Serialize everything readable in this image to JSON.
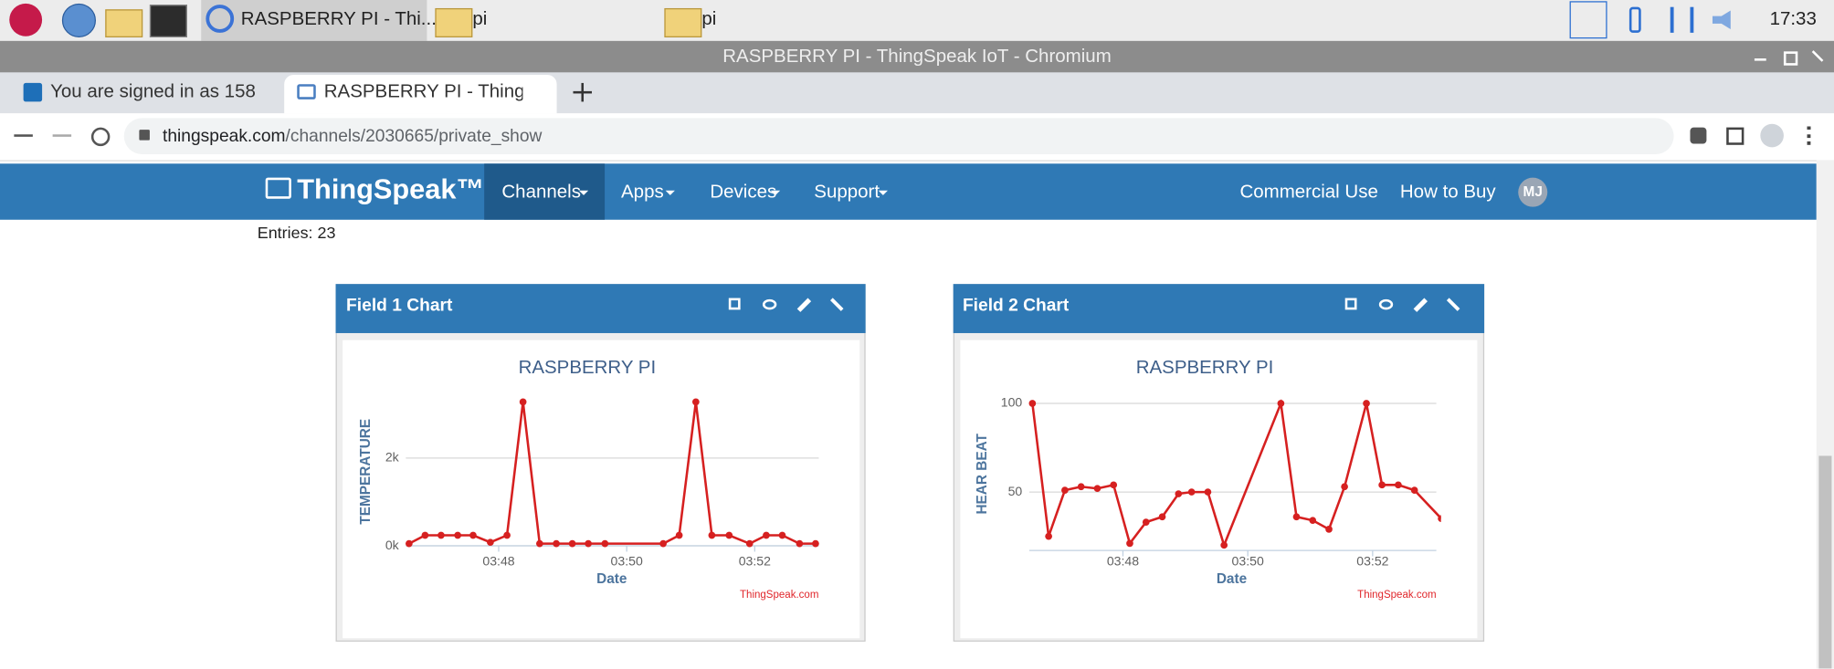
{
  "taskbar": {
    "window_button": "RASPBERRY PI - Thi...",
    "folder_1": "pi",
    "folder_2": "pi",
    "clock": "17:33"
  },
  "browser": {
    "window_title": "RASPBERRY PI - ThingSpeak IoT - Chromium",
    "tabs": [
      "You are signed in as 158",
      "RASPBERRY PI - ThingS"
    ],
    "url_host": "thingspeak.com",
    "url_path": "/channels/2030665/private_show"
  },
  "nav": {
    "logo": "ThingSpeak™",
    "menu": [
      "Channels",
      "Apps",
      "Devices",
      "Support"
    ],
    "right": [
      "Commercial Use",
      "How to Buy"
    ],
    "avatar": "MJ"
  },
  "entries": "Entries: 23",
  "charts": [
    {
      "header": "Field 1 Chart",
      "chart_data": {
        "type": "line",
        "title": "RASPBERRY PI",
        "x_label": "Date",
        "y_label": "TEMPERATURE",
        "credit": "ThingSpeak.com",
        "x": [
          46.6,
          46.85,
          47.1,
          47.36,
          47.6,
          47.87,
          48.13,
          48.38,
          48.64,
          48.9,
          49.15,
          49.4,
          49.66,
          50.57,
          50.82,
          51.08,
          51.33,
          51.6,
          51.92,
          52.18,
          52.43,
          52.7,
          52.95
        ],
        "series": [
          {
            "color": "#d62020",
            "values": [
              50,
              240,
              240,
              240,
              240,
              80,
              240,
              3280,
              50,
              50,
              50,
              50,
              50,
              50,
              240,
              3280,
              240,
              240,
              50,
              240,
              240,
              50,
              50
            ]
          }
        ],
        "xlim": [
          46.55,
          53
        ],
        "ylim": [
          0,
          3650
        ],
        "xticks": [
          {
            "value": 48,
            "label": "03:48"
          },
          {
            "value": 50,
            "label": "03:50"
          },
          {
            "value": 52,
            "label": "03:52"
          }
        ],
        "yticks": [
          {
            "value": 0,
            "label": "0k"
          },
          {
            "value": 2000,
            "label": "2k"
          }
        ],
        "grid": true
      }
    },
    {
      "header": "Field 2 Chart",
      "chart_data": {
        "type": "line",
        "title": "RASPBERRY PI",
        "x_label": "Date",
        "y_label": "HEAR BEAT",
        "credit": "ThingSpeak.com",
        "x": [
          46.55,
          46.81,
          47.07,
          47.33,
          47.59,
          47.85,
          48.11,
          48.37,
          48.63,
          48.89,
          49.1,
          49.36,
          49.62,
          50.53,
          50.78,
          51.04,
          51.3,
          51.55,
          51.9,
          52.15,
          52.41,
          52.67,
          53.1
        ],
        "series": [
          {
            "color": "#d62020",
            "values": [
              100,
              25,
              51,
              53,
              52,
              54,
              21,
              33,
              36,
              49,
              50,
              50,
              20,
              100,
              36,
              34,
              29,
              53,
              100,
              54,
              54,
              51,
              35
            ]
          }
        ],
        "xlim": [
          46.5,
          53.02
        ],
        "ylim": [
          17,
          110
        ],
        "xticks": [
          {
            "value": 48,
            "label": "03:48"
          },
          {
            "value": 50,
            "label": "03:50"
          },
          {
            "value": 52,
            "label": "03:52"
          }
        ],
        "yticks": [
          50,
          100
        ],
        "grid": true
      }
    }
  ]
}
